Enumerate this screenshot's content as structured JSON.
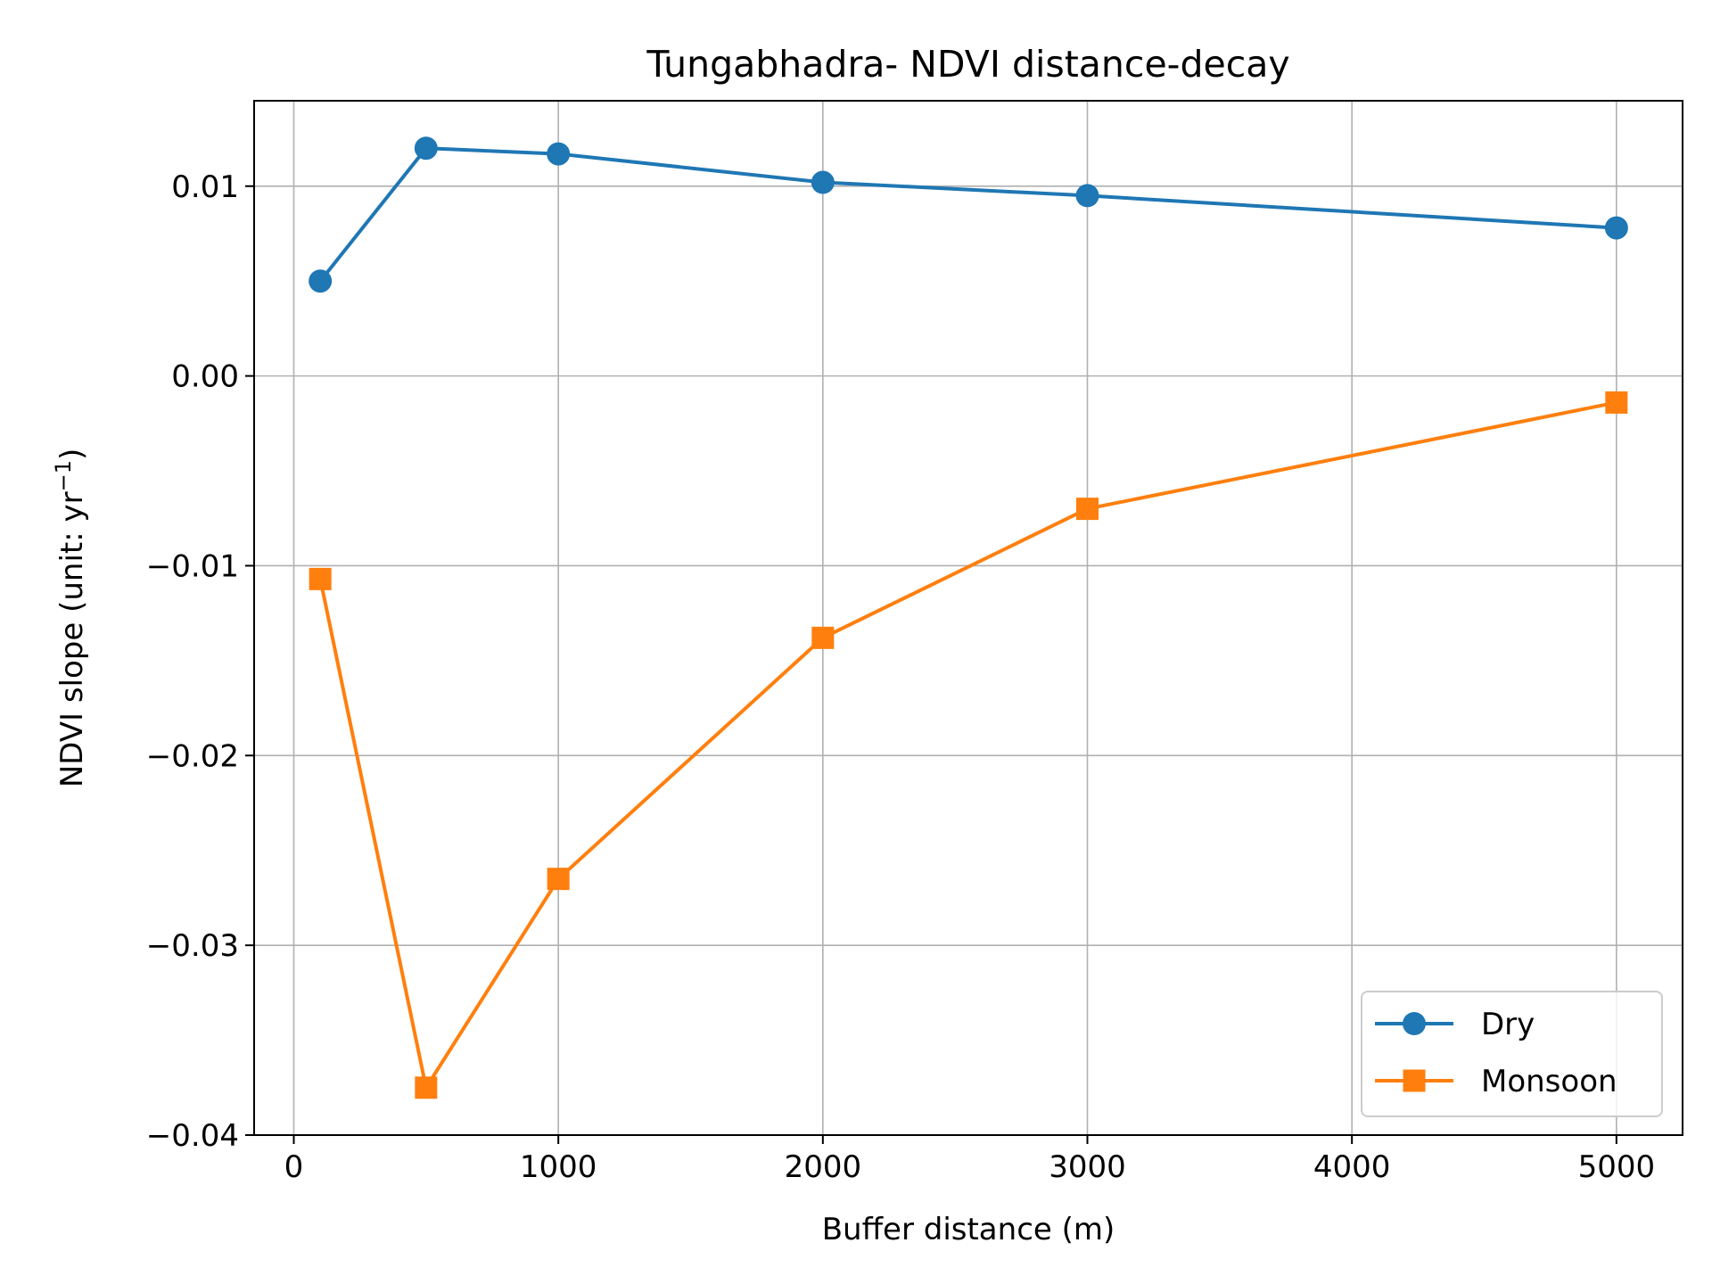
{
  "chart_data": {
    "type": "line",
    "title": "Tungabhadra- NDVI distance-decay",
    "xlabel": "Buffer distance (m)",
    "ylabel": "NDVI slope (unit: yr",
    "ylabel_sup": "−1",
    "ylabel_close": ")",
    "x": [
      100,
      500,
      1000,
      2000,
      3000,
      5000
    ],
    "xlim": [
      -150,
      5250
    ],
    "ylim": [
      -0.04,
      0.0145
    ],
    "xticks": [
      0,
      1000,
      2000,
      3000,
      4000,
      5000
    ],
    "xtick_labels": [
      "0",
      "1000",
      "2000",
      "3000",
      "4000",
      "5000"
    ],
    "yticks": [
      -0.04,
      -0.03,
      -0.02,
      -0.01,
      0.0,
      0.01
    ],
    "ytick_labels": [
      "−0.04",
      "−0.03",
      "−0.02",
      "−0.01",
      "0.00",
      "0.01"
    ],
    "grid": true,
    "legend_position": "lower-right",
    "series": [
      {
        "name": "Dry",
        "marker": "circle",
        "color": "#1f77b4",
        "values": [
          0.005,
          0.012,
          0.0117,
          0.0102,
          0.0095,
          0.0078
        ]
      },
      {
        "name": "Monsoon",
        "marker": "square",
        "color": "#ff7f0e",
        "values": [
          -0.0107,
          -0.0375,
          -0.0265,
          -0.0138,
          -0.007,
          -0.0014
        ]
      }
    ]
  }
}
